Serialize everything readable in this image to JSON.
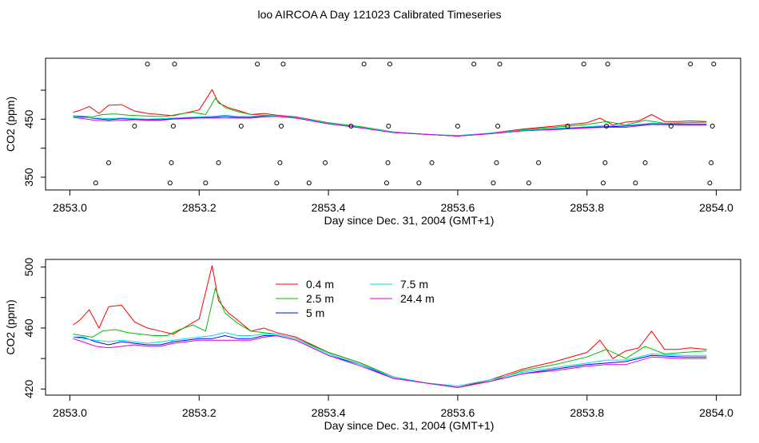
{
  "page": {
    "title": "loo AIRCOA A  Day 121023  Calibrated Timeseries"
  },
  "chart_data": [
    {
      "type": "line",
      "title": "loo AIRCOA A  Day 121023  Calibrated Timeseries",
      "xlabel": "Day since Dec. 31, 2004 (GMT+1)",
      "ylabel": "CO2 (ppm)",
      "xlim": [
        2853.0,
        2854.0
      ],
      "ylim": [
        328,
        555
      ],
      "xticks": [
        2853.0,
        2853.2,
        2853.4,
        2853.6,
        2853.8,
        2854.0
      ],
      "xtick_labels": [
        "2853.0",
        "2853.2",
        "2853.4",
        "2853.6",
        "2853.8",
        "2854.0"
      ],
      "yticks": [
        350,
        400,
        450,
        500
      ],
      "ytick_labels": [
        "350",
        "",
        "450",
        ""
      ],
      "grid": false,
      "series": [
        {
          "color": "#ff0000",
          "x": [
            2853.005,
            2853.015,
            2853.03,
            2853.045,
            2853.06,
            2853.08,
            2853.1,
            2853.12,
            2853.14,
            2853.16,
            2853.18,
            2853.2,
            2853.22,
            2853.23,
            2853.245,
            2853.26,
            2853.28,
            2853.3,
            2853.32,
            2853.35,
            2853.4,
            2853.45,
            2853.5,
            2853.55,
            2853.6,
            2853.65,
            2853.7,
            2853.75,
            2853.8,
            2853.82,
            2853.84,
            2853.86,
            2853.88,
            2853.9,
            2853.92,
            2853.94,
            2853.96,
            2853.985
          ],
          "y": [
            462,
            465,
            472,
            460,
            474,
            475,
            464,
            460,
            458,
            456,
            461,
            466,
            501,
            478,
            470,
            465,
            458,
            460,
            457,
            454,
            444,
            437,
            428,
            424,
            421,
            426,
            433,
            438,
            444,
            452,
            440,
            445,
            447,
            458,
            446,
            446,
            447,
            446
          ]
        },
        {
          "color": "#00bb00",
          "x": [
            2853.005,
            2853.02,
            2853.035,
            2853.05,
            2853.07,
            2853.09,
            2853.11,
            2853.13,
            2853.15,
            2853.17,
            2853.19,
            2853.21,
            2853.225,
            2853.24,
            2853.26,
            2853.28,
            2853.3,
            2853.32,
            2853.35,
            2853.4,
            2853.45,
            2853.5,
            2853.55,
            2853.6,
            2853.65,
            2853.7,
            2853.75,
            2853.8,
            2853.83,
            2853.86,
            2853.89,
            2853.92,
            2853.95,
            2853.985
          ],
          "y": [
            456,
            455,
            454,
            458,
            459,
            457,
            456,
            455,
            455,
            459,
            462,
            458,
            486,
            470,
            463,
            458,
            457,
            456,
            453,
            444,
            437,
            428,
            424,
            421,
            425,
            432,
            436,
            441,
            446,
            440,
            448,
            443,
            444,
            445
          ]
        },
        {
          "color": "#0000ff",
          "x": [
            2853.005,
            2853.02,
            2853.04,
            2853.06,
            2853.08,
            2853.1,
            2853.12,
            2853.14,
            2853.16,
            2853.18,
            2853.2,
            2853.22,
            2853.24,
            2853.26,
            2853.28,
            2853.3,
            2853.32,
            2853.35,
            2853.4,
            2853.45,
            2853.5,
            2853.55,
            2853.6,
            2853.65,
            2853.7,
            2853.75,
            2853.8,
            2853.83,
            2853.86,
            2853.9,
            2853.95,
            2853.985
          ],
          "y": [
            454,
            454,
            451,
            449,
            451,
            450,
            449,
            449,
            451,
            452,
            453,
            453,
            455,
            453,
            453,
            455,
            455,
            452,
            442,
            436,
            427,
            424,
            421,
            425,
            430,
            433,
            436,
            437,
            438,
            442,
            441,
            441
          ]
        },
        {
          "color": "#00dddd",
          "x": [
            2853.005,
            2853.02,
            2853.04,
            2853.06,
            2853.08,
            2853.1,
            2853.12,
            2853.14,
            2853.16,
            2853.18,
            2853.2,
            2853.22,
            2853.24,
            2853.26,
            2853.28,
            2853.3,
            2853.32,
            2853.35,
            2853.4,
            2853.45,
            2853.5,
            2853.55,
            2853.6,
            2853.65,
            2853.7,
            2853.75,
            2853.8,
            2853.83,
            2853.86,
            2853.9,
            2853.95,
            2853.985
          ],
          "y": [
            454,
            453,
            452,
            451,
            452,
            451,
            450,
            451,
            452,
            453,
            454,
            455,
            457,
            455,
            455,
            456,
            456,
            453,
            443,
            436,
            428,
            424,
            422,
            426,
            431,
            434,
            437,
            439,
            439,
            443,
            442,
            442
          ]
        },
        {
          "color": "#dd00dd",
          "x": [
            2853.005,
            2853.02,
            2853.04,
            2853.06,
            2853.08,
            2853.1,
            2853.12,
            2853.14,
            2853.16,
            2853.18,
            2853.2,
            2853.22,
            2853.24,
            2853.26,
            2853.28,
            2853.3,
            2853.32,
            2853.35,
            2853.4,
            2853.45,
            2853.5,
            2853.55,
            2853.6,
            2853.65,
            2853.7,
            2853.75,
            2853.8,
            2853.83,
            2853.86,
            2853.9,
            2853.95,
            2853.985
          ],
          "y": [
            453,
            451,
            448,
            447,
            448,
            449,
            448,
            448,
            450,
            451,
            452,
            452,
            452,
            452,
            452,
            454,
            455,
            452,
            442,
            435,
            427,
            424,
            421,
            425,
            430,
            432,
            435,
            436,
            436,
            441,
            440,
            440
          ]
        }
      ],
      "points": {
        "x": [
          2853.04,
          2853.06,
          2853.1,
          2853.12,
          2853.155,
          2853.157,
          2853.16,
          2853.162,
          2853.21,
          2853.23,
          2853.265,
          2853.29,
          2853.32,
          2853.325,
          2853.327,
          2853.33,
          2853.37,
          2853.395,
          2853.435,
          2853.455,
          2853.49,
          2853.492,
          2853.493,
          2853.495,
          2853.54,
          2853.56,
          2853.6,
          2853.625,
          2853.655,
          2853.66,
          2853.662,
          2853.665,
          2853.71,
          2853.725,
          2853.77,
          2853.795,
          2853.825,
          2853.828,
          2853.83,
          2853.832,
          2853.875,
          2853.89,
          2853.93,
          2853.96,
          2853.99,
          2853.992,
          2853.994,
          2853.996
        ],
        "y": [
          340,
          375,
          438,
          545,
          340,
          375,
          438,
          545,
          340,
          375,
          438,
          545,
          340,
          375,
          438,
          545,
          340,
          375,
          438,
          545,
          340,
          375,
          438,
          545,
          340,
          375,
          438,
          545,
          340,
          375,
          438,
          545,
          340,
          375,
          438,
          545,
          340,
          375,
          438,
          545,
          340,
          375,
          438,
          545,
          340,
          375,
          438,
          545
        ]
      }
    },
    {
      "type": "line",
      "xlabel": "Day since Dec. 31, 2004 (GMT+1)",
      "ylabel": "CO2 (ppm)",
      "xlim": [
        2853.0,
        2854.0
      ],
      "ylim": [
        416,
        505
      ],
      "xticks": [
        2853.0,
        2853.2,
        2853.4,
        2853.6,
        2853.8,
        2854.0
      ],
      "xtick_labels": [
        "2853.0",
        "2853.2",
        "2853.4",
        "2853.6",
        "2853.8",
        "2854.0"
      ],
      "yticks": [
        420,
        440,
        460,
        480,
        500
      ],
      "ytick_labels": [
        "420",
        "",
        "460",
        "",
        "500"
      ],
      "grid": false,
      "legend": {
        "placement": "top-center",
        "entries": [
          {
            "label": "0.4 m",
            "color": "#ff0000"
          },
          {
            "label": "2.5 m",
            "color": "#00bb00"
          },
          {
            "label": "5 m",
            "color": "#0000ff"
          },
          {
            "label": "7.5 m",
            "color": "#00dddd"
          },
          {
            "label": "24.4 m",
            "color": "#dd00dd"
          }
        ]
      },
      "series": [
        {
          "name": "0.4 m",
          "color": "#ff0000",
          "x": [
            2853.005,
            2853.015,
            2853.03,
            2853.045,
            2853.06,
            2853.08,
            2853.1,
            2853.12,
            2853.14,
            2853.16,
            2853.18,
            2853.2,
            2853.22,
            2853.23,
            2853.245,
            2853.26,
            2853.28,
            2853.3,
            2853.32,
            2853.35,
            2853.4,
            2853.45,
            2853.5,
            2853.55,
            2853.6,
            2853.65,
            2853.7,
            2853.75,
            2853.8,
            2853.82,
            2853.84,
            2853.86,
            2853.88,
            2853.9,
            2853.92,
            2853.94,
            2853.96,
            2853.985
          ],
          "y": [
            462,
            465,
            472,
            460,
            474,
            475,
            464,
            460,
            458,
            456,
            461,
            466,
            501,
            478,
            470,
            465,
            458,
            460,
            457,
            454,
            444,
            437,
            428,
            424,
            421,
            426,
            433,
            438,
            444,
            452,
            440,
            445,
            447,
            458,
            446,
            446,
            447,
            446
          ]
        },
        {
          "name": "2.5 m",
          "color": "#00bb00",
          "x": [
            2853.005,
            2853.02,
            2853.035,
            2853.05,
            2853.07,
            2853.09,
            2853.11,
            2853.13,
            2853.15,
            2853.17,
            2853.19,
            2853.21,
            2853.225,
            2853.24,
            2853.26,
            2853.28,
            2853.3,
            2853.32,
            2853.35,
            2853.4,
            2853.45,
            2853.5,
            2853.55,
            2853.6,
            2853.65,
            2853.7,
            2853.75,
            2853.8,
            2853.83,
            2853.86,
            2853.89,
            2853.92,
            2853.95,
            2853.985
          ],
          "y": [
            456,
            455,
            454,
            458,
            459,
            457,
            456,
            455,
            455,
            459,
            462,
            458,
            486,
            470,
            463,
            458,
            457,
            456,
            453,
            444,
            437,
            428,
            424,
            421,
            425,
            432,
            436,
            441,
            446,
            440,
            448,
            443,
            444,
            445
          ]
        },
        {
          "name": "5 m",
          "color": "#0000ff",
          "x": [
            2853.005,
            2853.02,
            2853.04,
            2853.06,
            2853.08,
            2853.1,
            2853.12,
            2853.14,
            2853.16,
            2853.18,
            2853.2,
            2853.22,
            2853.24,
            2853.26,
            2853.28,
            2853.3,
            2853.32,
            2853.35,
            2853.4,
            2853.45,
            2853.5,
            2853.55,
            2853.6,
            2853.65,
            2853.7,
            2853.75,
            2853.8,
            2853.83,
            2853.86,
            2853.9,
            2853.95,
            2853.985
          ],
          "y": [
            454,
            454,
            451,
            449,
            451,
            450,
            449,
            449,
            451,
            452,
            453,
            453,
            455,
            453,
            453,
            455,
            455,
            452,
            442,
            436,
            427,
            424,
            421,
            425,
            430,
            433,
            436,
            437,
            438,
            442,
            441,
            441
          ]
        },
        {
          "name": "7.5 m",
          "color": "#00dddd",
          "x": [
            2853.005,
            2853.02,
            2853.04,
            2853.06,
            2853.08,
            2853.1,
            2853.12,
            2853.14,
            2853.16,
            2853.18,
            2853.2,
            2853.22,
            2853.24,
            2853.26,
            2853.28,
            2853.3,
            2853.32,
            2853.35,
            2853.4,
            2853.45,
            2853.5,
            2853.55,
            2853.6,
            2853.65,
            2853.7,
            2853.75,
            2853.8,
            2853.83,
            2853.86,
            2853.9,
            2853.95,
            2853.985
          ],
          "y": [
            454,
            453,
            452,
            451,
            452,
            451,
            450,
            451,
            452,
            453,
            454,
            455,
            457,
            455,
            455,
            456,
            456,
            453,
            443,
            436,
            428,
            424,
            422,
            426,
            431,
            434,
            437,
            439,
            439,
            443,
            442,
            442
          ]
        },
        {
          "name": "24.4 m",
          "color": "#dd00dd",
          "x": [
            2853.005,
            2853.02,
            2853.04,
            2853.06,
            2853.08,
            2853.1,
            2853.12,
            2853.14,
            2853.16,
            2853.18,
            2853.2,
            2853.22,
            2853.24,
            2853.26,
            2853.28,
            2853.3,
            2853.32,
            2853.35,
            2853.4,
            2853.45,
            2853.5,
            2853.55,
            2853.6,
            2853.65,
            2853.7,
            2853.75,
            2853.8,
            2853.83,
            2853.86,
            2853.9,
            2853.95,
            2853.985
          ],
          "y": [
            453,
            451,
            448,
            447,
            448,
            449,
            448,
            448,
            450,
            451,
            452,
            452,
            452,
            452,
            452,
            454,
            455,
            452,
            442,
            435,
            427,
            424,
            421,
            425,
            430,
            432,
            435,
            436,
            436,
            441,
            440,
            440
          ]
        }
      ]
    }
  ]
}
